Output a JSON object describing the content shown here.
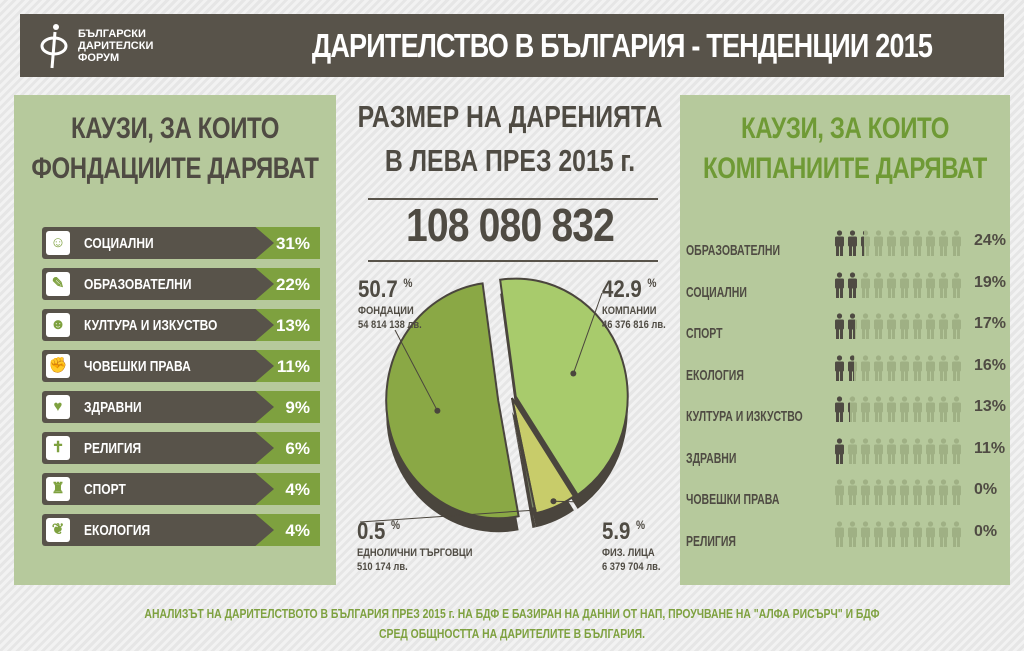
{
  "header": {
    "logo_text": [
      "БЪЛГАРСКИ",
      "ДАРИТЕЛСКИ",
      "ФОРУМ"
    ],
    "title": "ДАРИТЕЛСТВО В БЪЛГАРИЯ - ТЕНДЕНЦИИ 2015"
  },
  "foundations": {
    "title_line1": "КАУЗИ, ЗА КОИТО",
    "title_line2": "ФОНДАЦИИТЕ ДАРЯВАТ",
    "items": [
      {
        "label": "СОЦИАЛНИ",
        "pct": "31%",
        "icon": "social-icon",
        "glyph": "☺"
      },
      {
        "label": "ОБРАЗОВАТЕЛНИ",
        "pct": "22%",
        "icon": "education-icon",
        "glyph": "✎"
      },
      {
        "label": "КУЛТУРА И ИЗКУСТВО",
        "pct": "13%",
        "icon": "theatre-masks-icon",
        "glyph": "☻"
      },
      {
        "label": "ЧОВЕШКИ ПРАВА",
        "pct": "11%",
        "icon": "fist-icon",
        "glyph": "✊"
      },
      {
        "label": "ЗДРАВНИ",
        "pct": "9%",
        "icon": "heartbeat-icon",
        "glyph": "♥"
      },
      {
        "label": "РЕЛИГИЯ",
        "pct": "6%",
        "icon": "bible-icon",
        "glyph": "✝"
      },
      {
        "label": "СПОРТ",
        "pct": "4%",
        "icon": "trophy-icon",
        "glyph": "♜"
      },
      {
        "label": "ЕКОЛОГИЯ",
        "pct": "4%",
        "icon": "plant-hand-icon",
        "glyph": "❦"
      }
    ]
  },
  "companies": {
    "title_line1": "КАУЗИ, ЗА КОИТО",
    "title_line2": "КОМПАНИИТЕ ДАРЯВАТ",
    "items": [
      {
        "label": "ОБРАЗОВАТЕЛНИ",
        "pct": "24%",
        "value": 24
      },
      {
        "label": "СОЦИАЛНИ",
        "pct": "19%",
        "value": 19
      },
      {
        "label": "СПОРТ",
        "pct": "17%",
        "value": 17
      },
      {
        "label": "ЕКОЛОГИЯ",
        "pct": "16%",
        "value": 16
      },
      {
        "label": "КУЛТУРА И ИЗКУСТВО",
        "pct": "13%",
        "value": 13
      },
      {
        "label": "ЗДРАВНИ",
        "pct": "11%",
        "value": 11
      },
      {
        "label": "ЧОВЕШКИ ПРАВА",
        "pct": "0%",
        "value": 0
      },
      {
        "label": "РЕЛИГИЯ",
        "pct": "0%",
        "value": 0
      }
    ]
  },
  "center": {
    "title_line1": "РАЗМЕР НА ДАРЕНИЯТА",
    "title_line2": "В ЛЕВА ПРЕЗ 2015 г.",
    "total": "108 080 832"
  },
  "chart_data": {
    "type": "pie",
    "title": "РАЗМЕР НА ДАРЕНИЯТА В ЛЕВА ПРЕЗ 2015 г.",
    "slices": [
      {
        "name": "КОМПАНИИ",
        "percent": 42.9,
        "pct_text": "42.9",
        "amount": "46 376 816 лв.",
        "color": "#a8cb6c"
      },
      {
        "name": "ФИЗ. ЛИЦА",
        "percent": 5.9,
        "pct_text": "5.9",
        "amount": "6 379 704 лв.",
        "color": "#c8cc6a"
      },
      {
        "name": "ЕДНОЛИЧНИ ТЪРГОВЦИ",
        "percent": 0.5,
        "pct_text": "0.5",
        "amount": "510 174 лв.",
        "color": "#7d8a6a"
      },
      {
        "name": "ФОНДАЦИИ",
        "percent": 50.7,
        "pct_text": "50.7",
        "amount": "54 814 138 лв.",
        "color": "#8aa845"
      }
    ],
    "percent_sign": "%"
  },
  "footer": {
    "line1": "АНАЛИЗЪТ НА ДАРИТЕЛСТВОТО В БЪЛГАРИЯ ПРЕЗ 2015 г. НА БДФ Е БАЗИРАН НА ДАННИ ОТ НАП, ПРОУЧВАНЕ НА \"АЛФА РИСЪРЧ\" И БДФ",
    "line2": "СРЕД ОБЩНОСТТА НА ДАРИТЕЛИТЕ В БЪЛГАРИЯ."
  },
  "colors": {
    "dark": "#58534a",
    "green": "#7ea13f",
    "panel": "#b6c99c"
  }
}
